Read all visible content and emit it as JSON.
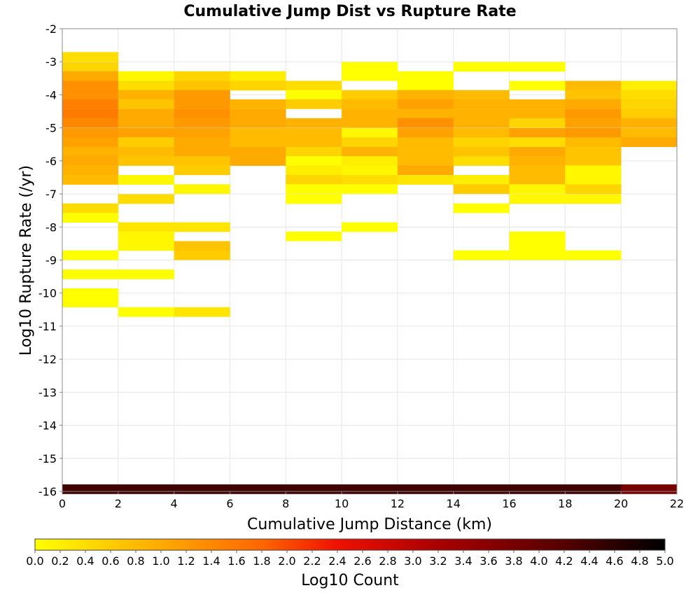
{
  "chart_data": {
    "type": "heatmap",
    "title": "Cumulative Jump Dist vs Rupture Rate",
    "xlabel": "Cumulative Jump Distance (km)",
    "ylabel": "Log10 Rupture Rate (/yr)",
    "xlim": [
      0,
      22
    ],
    "ylim": [
      -16,
      -2
    ],
    "x_ticks": [
      "0",
      "2",
      "4",
      "6",
      "8",
      "10",
      "12",
      "14",
      "16",
      "18",
      "20",
      "22"
    ],
    "y_ticks": [
      "-2",
      "-3",
      "-4",
      "-5",
      "-6",
      "-7",
      "-8",
      "-9",
      "-10",
      "-11",
      "-12",
      "-13",
      "-14",
      "-15",
      "-16"
    ],
    "grid": true,
    "colorbar": {
      "label": "Log10 Count",
      "min": 0.0,
      "max": 5.0,
      "ticks": [
        "0.0",
        "0.2",
        "0.4",
        "0.6",
        "0.8",
        "1.0",
        "1.2",
        "1.4",
        "1.6",
        "1.8",
        "2.0",
        "2.2",
        "2.4",
        "2.6",
        "2.8",
        "3.0",
        "3.2",
        "3.4",
        "3.6",
        "3.8",
        "4.0",
        "4.2",
        "4.4",
        "4.6",
        "4.8",
        "5.0"
      ],
      "stops": [
        {
          "v": 0.0,
          "color": "#ffff00"
        },
        {
          "v": 1.0,
          "color": "#ffaa00"
        },
        {
          "v": 1.8,
          "color": "#ff6600"
        },
        {
          "v": 2.4,
          "color": "#ee1100"
        },
        {
          "v": 3.2,
          "color": "#aa0000"
        },
        {
          "v": 4.2,
          "color": "#550000"
        },
        {
          "v": 5.0,
          "color": "#000000"
        }
      ]
    },
    "cells": [
      {
        "x": 1,
        "y": -2.85,
        "v": 0.4
      },
      {
        "x": 1,
        "y": -3.15,
        "v": 0.5
      },
      {
        "x": 1,
        "y": -3.43,
        "v": 1.0
      },
      {
        "x": 1,
        "y": -3.72,
        "v": 1.3
      },
      {
        "x": 1,
        "y": -4.0,
        "v": 1.3
      },
      {
        "x": 1,
        "y": -4.28,
        "v": 1.5
      },
      {
        "x": 1,
        "y": -4.57,
        "v": 1.55
      },
      {
        "x": 1,
        "y": -4.85,
        "v": 1.4
      },
      {
        "x": 1,
        "y": -5.15,
        "v": 1.2
      },
      {
        "x": 1,
        "y": -5.43,
        "v": 1.1
      },
      {
        "x": 1,
        "y": -5.72,
        "v": 0.9
      },
      {
        "x": 1,
        "y": -6.0,
        "v": 1.0
      },
      {
        "x": 1,
        "y": -6.28,
        "v": 0.9
      },
      {
        "x": 1,
        "y": -6.57,
        "v": 0.8
      },
      {
        "x": 1,
        "y": -7.43,
        "v": 0.4
      },
      {
        "x": 1,
        "y": -7.72,
        "v": 0.0
      },
      {
        "x": 1,
        "y": -8.85,
        "v": 0.0
      },
      {
        "x": 1,
        "y": -9.43,
        "v": 0.0
      },
      {
        "x": 1,
        "y": -10.0,
        "v": 0.0
      },
      {
        "x": 1,
        "y": -10.28,
        "v": 0.0
      },
      {
        "x": 3,
        "y": -3.43,
        "v": 0.1
      },
      {
        "x": 3,
        "y": -3.72,
        "v": 0.4
      },
      {
        "x": 3,
        "y": -4.0,
        "v": 0.9
      },
      {
        "x": 3,
        "y": -4.28,
        "v": 0.7
      },
      {
        "x": 3,
        "y": -4.57,
        "v": 1.0
      },
      {
        "x": 3,
        "y": -4.85,
        "v": 1.0
      },
      {
        "x": 3,
        "y": -5.15,
        "v": 1.1
      },
      {
        "x": 3,
        "y": -5.43,
        "v": 0.6
      },
      {
        "x": 3,
        "y": -5.72,
        "v": 0.8
      },
      {
        "x": 3,
        "y": -6.0,
        "v": 0.7
      },
      {
        "x": 3,
        "y": -6.57,
        "v": 0.1
      },
      {
        "x": 3,
        "y": -7.15,
        "v": 0.4
      },
      {
        "x": 3,
        "y": -8.0,
        "v": 0.3
      },
      {
        "x": 3,
        "y": -8.28,
        "v": 0.1
      },
      {
        "x": 3,
        "y": -8.57,
        "v": 0.1
      },
      {
        "x": 3,
        "y": -9.43,
        "v": 0.0
      },
      {
        "x": 3,
        "y": -10.57,
        "v": 0.0
      },
      {
        "x": 5,
        "y": -3.43,
        "v": 0.5
      },
      {
        "x": 5,
        "y": -3.72,
        "v": 0.7
      },
      {
        "x": 5,
        "y": -4.0,
        "v": 1.2
      },
      {
        "x": 5,
        "y": -4.28,
        "v": 1.2
      },
      {
        "x": 5,
        "y": -4.57,
        "v": 1.3
      },
      {
        "x": 5,
        "y": -4.85,
        "v": 1.2
      },
      {
        "x": 5,
        "y": -5.15,
        "v": 1.1
      },
      {
        "x": 5,
        "y": -5.43,
        "v": 1.0
      },
      {
        "x": 5,
        "y": -5.72,
        "v": 1.0
      },
      {
        "x": 5,
        "y": -6.0,
        "v": 0.7
      },
      {
        "x": 5,
        "y": -6.28,
        "v": 0.6
      },
      {
        "x": 5,
        "y": -6.85,
        "v": 0.1
      },
      {
        "x": 5,
        "y": -8.0,
        "v": 0.3
      },
      {
        "x": 5,
        "y": -8.57,
        "v": 0.7
      },
      {
        "x": 5,
        "y": -8.85,
        "v": 0.6
      },
      {
        "x": 5,
        "y": -10.57,
        "v": 0.3
      },
      {
        "x": 7,
        "y": -3.43,
        "v": 0.2
      },
      {
        "x": 7,
        "y": -3.72,
        "v": 0.5
      },
      {
        "x": 7,
        "y": -4.28,
        "v": 0.9
      },
      {
        "x": 7,
        "y": -4.57,
        "v": 1.0
      },
      {
        "x": 7,
        "y": -4.85,
        "v": 1.0
      },
      {
        "x": 7,
        "y": -5.15,
        "v": 0.8
      },
      {
        "x": 7,
        "y": -5.43,
        "v": 0.8
      },
      {
        "x": 7,
        "y": -5.72,
        "v": 1.0
      },
      {
        "x": 7,
        "y": -6.0,
        "v": 1.0
      },
      {
        "x": 9,
        "y": -3.72,
        "v": 0.4
      },
      {
        "x": 9,
        "y": -4.0,
        "v": 0.0
      },
      {
        "x": 9,
        "y": -4.28,
        "v": 0.6
      },
      {
        "x": 9,
        "y": -4.85,
        "v": 0.9
      },
      {
        "x": 9,
        "y": -5.15,
        "v": 0.8
      },
      {
        "x": 9,
        "y": -5.43,
        "v": 0.8
      },
      {
        "x": 9,
        "y": -5.72,
        "v": 0.5
      },
      {
        "x": 9,
        "y": -6.0,
        "v": 0.0
      },
      {
        "x": 9,
        "y": -6.28,
        "v": 0.2
      },
      {
        "x": 9,
        "y": -6.57,
        "v": 0.5
      },
      {
        "x": 9,
        "y": -6.85,
        "v": 0.0
      },
      {
        "x": 9,
        "y": -7.15,
        "v": 0.0
      },
      {
        "x": 9,
        "y": -8.28,
        "v": 0.0
      },
      {
        "x": 11,
        "y": -3.15,
        "v": 0.0
      },
      {
        "x": 11,
        "y": -3.43,
        "v": 0.0
      },
      {
        "x": 11,
        "y": -4.0,
        "v": 0.6
      },
      {
        "x": 11,
        "y": -4.28,
        "v": 0.8
      },
      {
        "x": 11,
        "y": -4.57,
        "v": 0.9
      },
      {
        "x": 11,
        "y": -4.85,
        "v": 0.9
      },
      {
        "x": 11,
        "y": -5.15,
        "v": 0.1
      },
      {
        "x": 11,
        "y": -5.43,
        "v": 0.5
      },
      {
        "x": 11,
        "y": -5.72,
        "v": 0.9
      },
      {
        "x": 11,
        "y": -6.0,
        "v": 0.2
      },
      {
        "x": 11,
        "y": -6.28,
        "v": 0.1
      },
      {
        "x": 11,
        "y": -6.57,
        "v": 0.4
      },
      {
        "x": 11,
        "y": -6.85,
        "v": 0.0
      },
      {
        "x": 11,
        "y": -8.0,
        "v": 0.0
      },
      {
        "x": 13,
        "y": -3.43,
        "v": 0.0
      },
      {
        "x": 13,
        "y": -3.72,
        "v": 0.0
      },
      {
        "x": 13,
        "y": -4.0,
        "v": 0.9
      },
      {
        "x": 13,
        "y": -4.28,
        "v": 1.1
      },
      {
        "x": 13,
        "y": -4.57,
        "v": 0.9
      },
      {
        "x": 13,
        "y": -4.85,
        "v": 1.3
      },
      {
        "x": 13,
        "y": -5.15,
        "v": 1.1
      },
      {
        "x": 13,
        "y": -5.43,
        "v": 0.8
      },
      {
        "x": 13,
        "y": -5.72,
        "v": 0.8
      },
      {
        "x": 13,
        "y": -6.0,
        "v": 0.8
      },
      {
        "x": 13,
        "y": -6.28,
        "v": 1.0
      },
      {
        "x": 13,
        "y": -6.57,
        "v": 0.3
      },
      {
        "x": 15,
        "y": -3.15,
        "v": 0.0
      },
      {
        "x": 15,
        "y": -4.0,
        "v": 0.8
      },
      {
        "x": 15,
        "y": -4.28,
        "v": 0.9
      },
      {
        "x": 15,
        "y": -4.57,
        "v": 0.9
      },
      {
        "x": 15,
        "y": -4.85,
        "v": 0.9
      },
      {
        "x": 15,
        "y": -5.15,
        "v": 0.8
      },
      {
        "x": 15,
        "y": -5.43,
        "v": 0.5
      },
      {
        "x": 15,
        "y": -5.72,
        "v": 0.7
      },
      {
        "x": 15,
        "y": -6.0,
        "v": 0.4
      },
      {
        "x": 15,
        "y": -6.57,
        "v": 0.2
      },
      {
        "x": 15,
        "y": -6.85,
        "v": 0.6
      },
      {
        "x": 15,
        "y": -7.43,
        "v": 0.0
      },
      {
        "x": 15,
        "y": -8.85,
        "v": 0.0
      },
      {
        "x": 17,
        "y": -3.15,
        "v": 0.0
      },
      {
        "x": 17,
        "y": -3.72,
        "v": 0.0
      },
      {
        "x": 17,
        "y": -4.28,
        "v": 0.9
      },
      {
        "x": 17,
        "y": -4.57,
        "v": 0.9
      },
      {
        "x": 17,
        "y": -4.85,
        "v": 0.5
      },
      {
        "x": 17,
        "y": -5.15,
        "v": 1.1
      },
      {
        "x": 17,
        "y": -5.43,
        "v": 0.4
      },
      {
        "x": 17,
        "y": -5.72,
        "v": 1.0
      },
      {
        "x": 17,
        "y": -6.0,
        "v": 0.9
      },
      {
        "x": 17,
        "y": -6.28,
        "v": 0.8
      },
      {
        "x": 17,
        "y": -6.57,
        "v": 0.8
      },
      {
        "x": 17,
        "y": -6.85,
        "v": 0.1
      },
      {
        "x": 17,
        "y": -7.15,
        "v": 0.1
      },
      {
        "x": 17,
        "y": -8.28,
        "v": 0.0
      },
      {
        "x": 17,
        "y": -8.57,
        "v": 0.0
      },
      {
        "x": 17,
        "y": -8.85,
        "v": 0.0
      },
      {
        "x": 19,
        "y": -3.72,
        "v": 0.8
      },
      {
        "x": 19,
        "y": -4.0,
        "v": 0.7
      },
      {
        "x": 19,
        "y": -4.28,
        "v": 1.0
      },
      {
        "x": 19,
        "y": -4.57,
        "v": 1.2
      },
      {
        "x": 19,
        "y": -4.85,
        "v": 1.1
      },
      {
        "x": 19,
        "y": -5.15,
        "v": 1.2
      },
      {
        "x": 19,
        "y": -5.43,
        "v": 0.8
      },
      {
        "x": 19,
        "y": -5.72,
        "v": 0.7
      },
      {
        "x": 19,
        "y": -6.0,
        "v": 0.7
      },
      {
        "x": 19,
        "y": -6.28,
        "v": 0.1
      },
      {
        "x": 19,
        "y": -6.57,
        "v": 0.1
      },
      {
        "x": 19,
        "y": -6.85,
        "v": 0.5
      },
      {
        "x": 19,
        "y": -7.15,
        "v": 0.1
      },
      {
        "x": 19,
        "y": -8.85,
        "v": 0.0
      },
      {
        "x": 21,
        "y": -3.72,
        "v": 0.2
      },
      {
        "x": 21,
        "y": -4.0,
        "v": 0.4
      },
      {
        "x": 21,
        "y": -4.28,
        "v": 0.5
      },
      {
        "x": 21,
        "y": -4.57,
        "v": 0.6
      },
      {
        "x": 21,
        "y": -4.85,
        "v": 0.9
      },
      {
        "x": 21,
        "y": -5.15,
        "v": 0.8
      },
      {
        "x": 21,
        "y": -5.43,
        "v": 1.0
      },
      {
        "x": 1,
        "y": -15.93,
        "v": 4.4
      },
      {
        "x": 3,
        "y": -15.93,
        "v": 4.4
      },
      {
        "x": 5,
        "y": -15.93,
        "v": 4.4
      },
      {
        "x": 7,
        "y": -15.93,
        "v": 4.4
      },
      {
        "x": 9,
        "y": -15.93,
        "v": 4.4
      },
      {
        "x": 11,
        "y": -15.93,
        "v": 4.4
      },
      {
        "x": 13,
        "y": -15.93,
        "v": 4.4
      },
      {
        "x": 15,
        "y": -15.93,
        "v": 4.4
      },
      {
        "x": 17,
        "y": -15.93,
        "v": 4.4
      },
      {
        "x": 19,
        "y": -15.93,
        "v": 4.4
      },
      {
        "x": 21,
        "y": -15.93,
        "v": 3.8
      }
    ]
  }
}
